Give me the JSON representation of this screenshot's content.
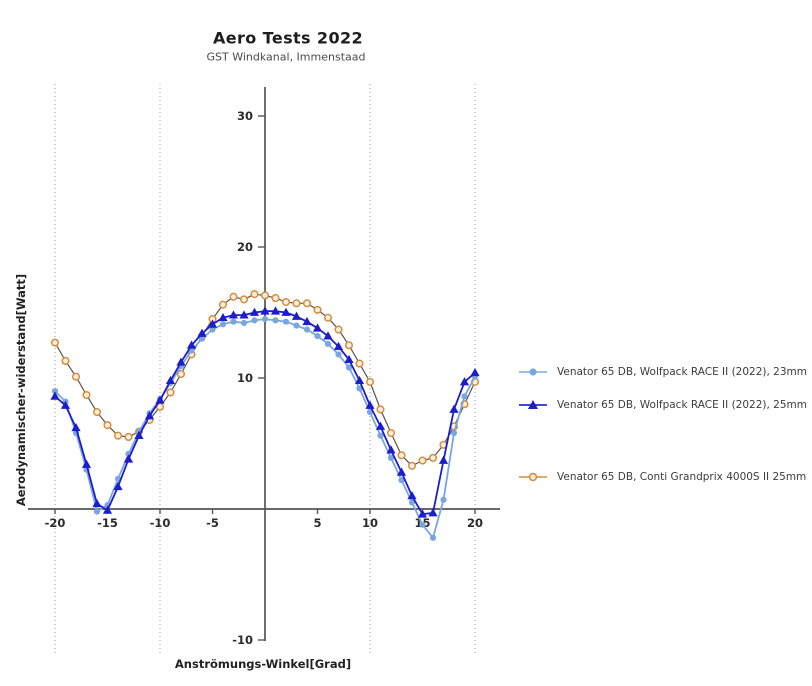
{
  "chart_data": {
    "type": "line",
    "title": "Aero Tests 2022",
    "subtitle": "GST Windkanal, Immenstaad",
    "xlabel": "Anströmungs-Winkel[Grad]",
    "ylabel": "Aerodynamischer-widerstand[Watt]",
    "x": [
      -20,
      -19,
      -18,
      -17,
      -16,
      -15,
      -14,
      -13,
      -12,
      -11,
      -10,
      -9,
      -8,
      -7,
      -6,
      -5,
      -4,
      -3,
      -2,
      -1,
      0,
      1,
      2,
      3,
      4,
      5,
      6,
      7,
      8,
      9,
      10,
      11,
      12,
      13,
      14,
      15,
      16,
      17,
      18,
      19,
      20
    ],
    "series": [
      {
        "name": "Venator 65 DB, Wolfpack RACE II (2022), 23mm",
        "marker": "circle",
        "color": "#7aa6e0",
        "line_color": "#7aa6e0",
        "legend_line_color": "#9dbdea",
        "values": [
          9.0,
          8.2,
          5.8,
          3.0,
          -0.2,
          0.3,
          2.3,
          4.2,
          5.9,
          7.3,
          8.4,
          9.6,
          10.9,
          12.1,
          13.0,
          13.7,
          14.1,
          14.3,
          14.2,
          14.4,
          14.5,
          14.4,
          14.3,
          14.0,
          13.7,
          13.2,
          12.6,
          11.8,
          10.8,
          9.2,
          7.4,
          5.6,
          3.9,
          2.2,
          0.5,
          -1.2,
          -2.2,
          0.7,
          5.8,
          8.6,
          10.1
        ]
      },
      {
        "name": "Venator 65 DB, Wolfpack RACE II (2022), 25mm",
        "marker": "triangle",
        "color": "#1d1dcd",
        "line_color": "#1d1dcd",
        "legend_line_color": "#4545d6",
        "values": [
          8.6,
          7.9,
          6.2,
          3.4,
          0.4,
          -0.1,
          1.7,
          3.8,
          5.6,
          7.1,
          8.3,
          9.8,
          11.2,
          12.5,
          13.4,
          14.1,
          14.6,
          14.8,
          14.8,
          15.0,
          15.1,
          15.1,
          15.0,
          14.7,
          14.3,
          13.8,
          13.2,
          12.4,
          11.4,
          9.8,
          7.9,
          6.3,
          4.5,
          2.8,
          1.0,
          -0.4,
          -0.3,
          3.7,
          7.6,
          9.7,
          10.4
        ]
      },
      {
        "name": "Venator 65 DB, Conti Grandprix 4000S II 25mm",
        "marker": "open-circle",
        "color": "#d58c3e",
        "marker_fill": "#fcf0dd",
        "line_color": "#5c544a",
        "legend_line_color": "#ddab6e",
        "values": [
          12.7,
          11.3,
          10.1,
          8.7,
          7.4,
          6.4,
          5.6,
          5.5,
          5.9,
          6.8,
          7.8,
          8.9,
          10.3,
          11.8,
          13.2,
          14.5,
          15.6,
          16.2,
          16.0,
          16.4,
          16.3,
          16.1,
          15.8,
          15.7,
          15.7,
          15.2,
          14.6,
          13.7,
          12.5,
          11.1,
          9.7,
          7.6,
          5.8,
          4.1,
          3.3,
          3.7,
          3.9,
          4.9,
          6.3,
          8.0,
          9.7
        ]
      }
    ],
    "x_ticks": [
      -20,
      -15,
      -10,
      -5,
      5,
      10,
      15,
      20
    ],
    "y_ticks": [
      30,
      20,
      10,
      -10
    ],
    "grid_x": [
      -20,
      -10,
      10,
      20
    ],
    "xlim": [
      -22.5,
      22
    ],
    "ylim": [
      -11,
      32
    ],
    "grid_style": "dotted-vertical",
    "legend_position": "right"
  },
  "colors": {
    "background": "#ffffff",
    "axis": "#555555",
    "tick_label": "#2b2b2b",
    "grid": "#999999",
    "title_text": "#1d1d1d"
  }
}
